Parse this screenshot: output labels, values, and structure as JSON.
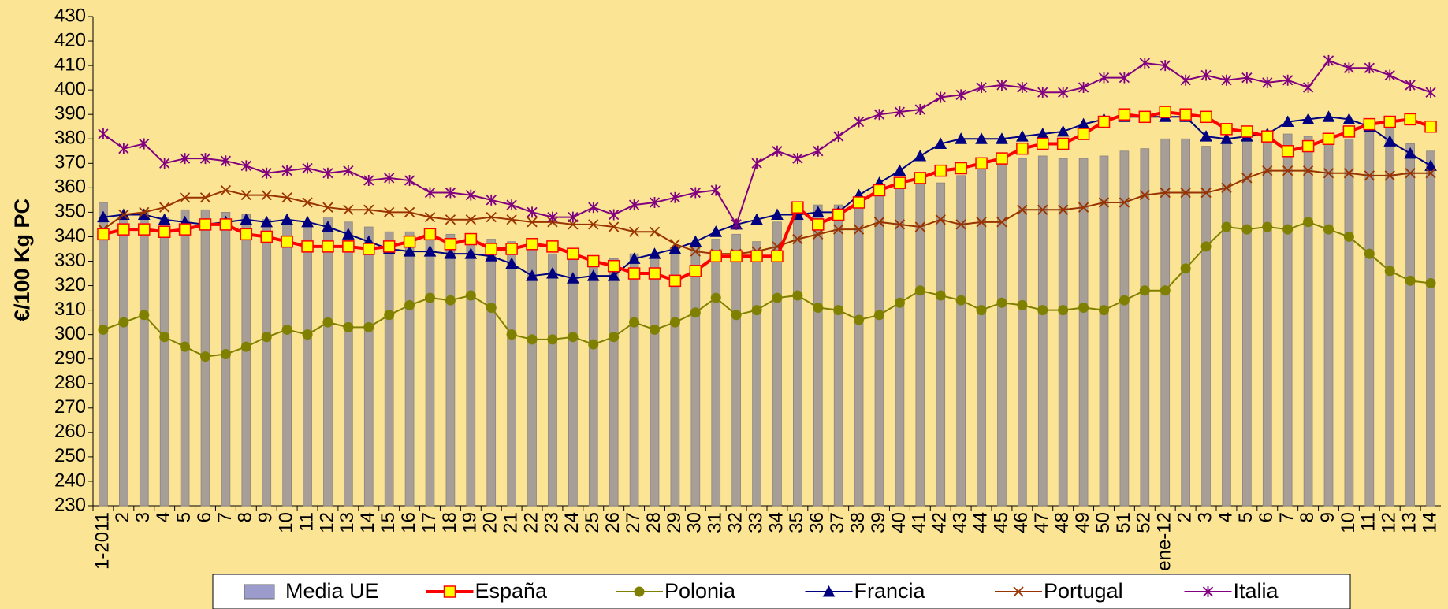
{
  "chart_data": {
    "type": "bar-line",
    "y_label": "€/100 Kg PC",
    "categories": [
      "1-2011",
      "2",
      "3",
      "4",
      "5",
      "6",
      "7",
      "8",
      "9",
      "10",
      "11",
      "12",
      "13",
      "14",
      "15",
      "16",
      "17",
      "18",
      "19",
      "20",
      "21",
      "22",
      "23",
      "24",
      "25",
      "26",
      "27",
      "28",
      "29",
      "30",
      "31",
      "32",
      "33",
      "34",
      "35",
      "36",
      "37",
      "38",
      "39",
      "40",
      "41",
      "42",
      "43",
      "44",
      "45",
      "46",
      "47",
      "48",
      "49",
      "50",
      "51",
      "52",
      "ene-12",
      "2",
      "3",
      "4",
      "5",
      "6",
      "7",
      "8",
      "9",
      "10",
      "11",
      "12",
      "13",
      "14"
    ],
    "ylim": [
      230,
      430
    ],
    "yticks": [
      230,
      240,
      250,
      260,
      270,
      280,
      290,
      300,
      310,
      320,
      330,
      340,
      350,
      360,
      370,
      380,
      390,
      400,
      410,
      420,
      430
    ],
    "legend": "bottom",
    "series": [
      {
        "name": "Media UE",
        "type": "bar",
        "color": "#a79e98",
        "legend_color": "#9c9ccc",
        "values": [
          354,
          349,
          350,
          348,
          351,
          351,
          350,
          349,
          347,
          347,
          346,
          348,
          346,
          344,
          342,
          342,
          340,
          341,
          340,
          339,
          338,
          336,
          333,
          333,
          331,
          331,
          333,
          333,
          333,
          336,
          339,
          341,
          338,
          346,
          349,
          353,
          353,
          353,
          357,
          362,
          364,
          362,
          365,
          368,
          370,
          372,
          373,
          372,
          372,
          373,
          375,
          376,
          380,
          380,
          377,
          380,
          380,
          380,
          382,
          381,
          380,
          380,
          383,
          385,
          378,
          375
        ]
      },
      {
        "name": "España",
        "type": "line",
        "color": "#ff0000",
        "marker": "square",
        "marker_fill": "#ffff00",
        "values": [
          341,
          343,
          343,
          342,
          343,
          345,
          345,
          341,
          340,
          338,
          336,
          336,
          336,
          335,
          336,
          338,
          341,
          337,
          339,
          335,
          335,
          337,
          336,
          333,
          330,
          328,
          325,
          325,
          322,
          326,
          332,
          332,
          332,
          332,
          352,
          345,
          349,
          354,
          359,
          362,
          364,
          367,
          368,
          370,
          372,
          376,
          378,
          378,
          382,
          387,
          390,
          389,
          391,
          390,
          389,
          384,
          383,
          381,
          375,
          377,
          380,
          383,
          386,
          387,
          388,
          385
        ]
      },
      {
        "name": "Polonia",
        "type": "line",
        "color": "#808000",
        "marker": "circle",
        "marker_fill": "#808000",
        "values": [
          302,
          305,
          308,
          299,
          295,
          291,
          292,
          295,
          299,
          302,
          300,
          305,
          303,
          303,
          308,
          312,
          315,
          314,
          316,
          311,
          300,
          298,
          298,
          299,
          296,
          299,
          305,
          302,
          305,
          309,
          315,
          308,
          310,
          315,
          316,
          311,
          310,
          306,
          308,
          313,
          318,
          316,
          314,
          310,
          313,
          312,
          310,
          310,
          311,
          310,
          314,
          318,
          318,
          327,
          336,
          344,
          343,
          344,
          343,
          346,
          343,
          340,
          333,
          326,
          322,
          321
        ]
      },
      {
        "name": "Francia",
        "type": "line",
        "color": "#000080",
        "marker": "triangle",
        "marker_fill": "#000080",
        "values": [
          348,
          349,
          349,
          347,
          346,
          345,
          346,
          347,
          346,
          347,
          346,
          344,
          341,
          338,
          335,
          334,
          334,
          333,
          333,
          332,
          329,
          324,
          325,
          323,
          324,
          324,
          331,
          333,
          335,
          338,
          342,
          345,
          347,
          349,
          349,
          350,
          350,
          357,
          362,
          367,
          373,
          378,
          380,
          380,
          380,
          381,
          382,
          383,
          386,
          388,
          389,
          389,
          389,
          389,
          381,
          380,
          381,
          382,
          387,
          388,
          389,
          388,
          385,
          379,
          374,
          369
        ]
      },
      {
        "name": "Portugal",
        "type": "line",
        "color": "#993300",
        "marker": "x",
        "marker_fill": "#993300",
        "values": [
          343,
          349,
          350,
          352,
          356,
          356,
          359,
          357,
          357,
          356,
          354,
          352,
          351,
          351,
          350,
          350,
          348,
          347,
          347,
          348,
          347,
          346,
          346,
          345,
          345,
          344,
          342,
          342,
          337,
          334,
          333,
          333,
          334,
          336,
          339,
          341,
          343,
          343,
          346,
          345,
          344,
          347,
          345,
          346,
          346,
          351,
          351,
          351,
          352,
          354,
          354,
          357,
          358,
          358,
          358,
          360,
          364,
          367,
          367,
          367,
          366,
          366,
          365,
          365,
          366,
          366
        ]
      },
      {
        "name": "Italia",
        "type": "line",
        "color": "#800080",
        "marker": "star",
        "marker_fill": "#800080",
        "values": [
          382,
          376,
          378,
          370,
          372,
          372,
          371,
          369,
          366,
          367,
          368,
          366,
          367,
          363,
          364,
          363,
          358,
          358,
          357,
          355,
          353,
          350,
          348,
          348,
          352,
          349,
          353,
          354,
          356,
          358,
          359,
          345,
          370,
          375,
          372,
          375,
          381,
          387,
          390,
          391,
          392,
          397,
          398,
          401,
          402,
          401,
          399,
          399,
          401,
          405,
          405,
          411,
          410,
          404,
          406,
          404,
          405,
          403,
          404,
          401,
          412,
          409,
          409,
          406,
          402,
          399
        ]
      }
    ]
  }
}
